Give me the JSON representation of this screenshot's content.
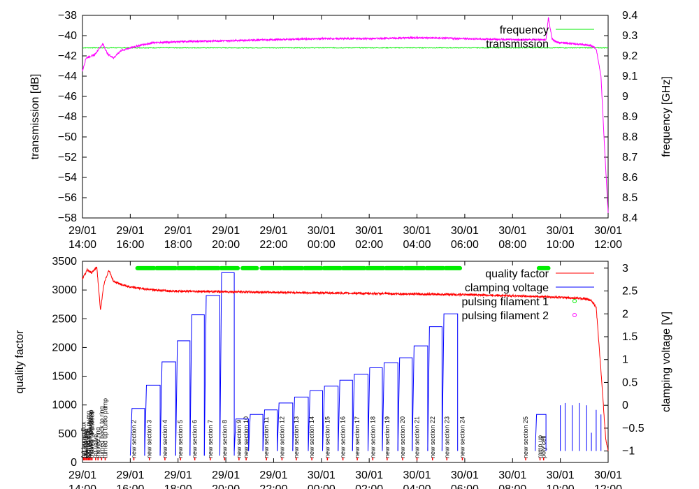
{
  "colors": {
    "frequency": "#00ee00",
    "transmission": "#ff00ff",
    "quality_factor": "#ff0000",
    "clamping_voltage": "#0000ff",
    "pulsing_filament_1": "#00ee00",
    "pulsing_filament_2": "#ff00ff"
  },
  "x_tick_labels": [
    {
      "date": "29/01",
      "time": "14:00"
    },
    {
      "date": "29/01",
      "time": "16:00"
    },
    {
      "date": "29/01",
      "time": "18:00"
    },
    {
      "date": "29/01",
      "time": "20:00"
    },
    {
      "date": "29/01",
      "time": "22:00"
    },
    {
      "date": "30/01",
      "time": "00:00"
    },
    {
      "date": "30/01",
      "time": "02:00"
    },
    {
      "date": "30/01",
      "time": "04:00"
    },
    {
      "date": "30/01",
      "time": "06:00"
    },
    {
      "date": "30/01",
      "time": "08:00"
    },
    {
      "date": "30/01",
      "time": "10:00"
    },
    {
      "date": "30/01",
      "time": "12:00"
    }
  ],
  "chart_data": [
    {
      "type": "line",
      "title": "",
      "x_unit": "hours since 29/01 14:00",
      "x_range": [
        0,
        22
      ],
      "ylabel": "transmission [dB]",
      "ylim": [
        -58,
        -38
      ],
      "y_ticks": [
        -58,
        -56,
        -54,
        -52,
        -50,
        -48,
        -46,
        -44,
        -42,
        -40,
        -38
      ],
      "y2label": "frequency [GHz]",
      "y2lim": [
        8.4,
        9.4
      ],
      "y2_ticks": [
        "8.4",
        "8.5",
        "8.6",
        "8.7",
        "8.8",
        "8.9",
        "9",
        "9.1",
        "9.2",
        "9.3",
        "9.4"
      ],
      "legend_position": "top-right",
      "series": [
        {
          "name": "frequency",
          "axis": "y2",
          "x": [
            0,
            0.5,
            1.0,
            2,
            4,
            6,
            8,
            10,
            12,
            14,
            16,
            18,
            19.5,
            20.5,
            21.5,
            21.8,
            22.0
          ],
          "y": [
            9.24,
            9.24,
            9.24,
            9.24,
            9.24,
            9.24,
            9.24,
            9.24,
            9.24,
            9.24,
            9.24,
            9.24,
            9.24,
            9.24,
            9.24,
            9.24,
            9.24
          ]
        },
        {
          "name": "transmission",
          "axis": "y",
          "x": [
            0,
            0.15,
            0.5,
            0.85,
            1.05,
            1.3,
            1.6,
            2.0,
            2.5,
            3,
            4,
            6,
            8,
            10,
            12,
            14,
            16,
            18,
            19.4,
            19.5,
            19.65,
            19.8,
            20,
            20.5,
            21,
            21.3,
            21.5,
            21.7,
            21.85,
            22.0
          ],
          "y": [
            -43.5,
            -42.2,
            -41.9,
            -40.8,
            -41.8,
            -42.2,
            -41.5,
            -41.2,
            -40.9,
            -40.7,
            -40.6,
            -40.5,
            -40.4,
            -40.3,
            -40.3,
            -40.2,
            -40.3,
            -40.4,
            -40.4,
            -38.2,
            -40.3,
            -40.6,
            -40.7,
            -40.8,
            -40.9,
            -41.0,
            -41.3,
            -44,
            -51,
            -57.5
          ]
        }
      ]
    },
    {
      "type": "line",
      "title": "",
      "x_unit": "hours since 29/01 14:00",
      "x_range": [
        0,
        22
      ],
      "ylabel": "quality factor",
      "ylim": [
        0,
        3500
      ],
      "y_ticks": [
        0,
        500,
        1000,
        1500,
        2000,
        2500,
        3000,
        3500
      ],
      "y2label": "clamping voltage [V]",
      "y2lim": [
        -1.25,
        3.15
      ],
      "y2_ticks": [
        "-1",
        "-0.5",
        "0",
        "0.5",
        "1",
        "1.5",
        "2",
        "2.5",
        "3"
      ],
      "legend_position": "top-right",
      "series": [
        {
          "name": "quality factor",
          "axis": "y",
          "x": [
            0,
            0.2,
            0.4,
            0.6,
            0.75,
            0.9,
            1.1,
            1.3,
            1.6,
            2.0,
            3,
            4,
            6,
            8,
            10,
            12,
            14,
            16,
            18,
            19.5,
            20,
            20.5,
            21,
            21.3,
            21.5,
            21.7,
            21.9,
            22.0
          ],
          "y": [
            3200,
            3350,
            3300,
            3400,
            2650,
            3100,
            3350,
            3150,
            3100,
            3050,
            3000,
            2980,
            2970,
            2960,
            2950,
            2940,
            2930,
            2920,
            2900,
            2880,
            2870,
            2860,
            2850,
            2820,
            2700,
            1600,
            400,
            200
          ]
        },
        {
          "name": "clamping voltage",
          "axis": "y2",
          "sections": [
            {
              "x0": 2.0,
              "x1": 2.6,
              "v0": -1.1,
              "v1": -0.07
            },
            {
              "x0": 2.6,
              "x1": 3.25,
              "v0": -1.1,
              "v1": 0.44
            },
            {
              "x0": 3.25,
              "x1": 3.9,
              "v0": -1.1,
              "v1": 0.95
            },
            {
              "x0": 3.9,
              "x1": 4.5,
              "v0": -1.1,
              "v1": 1.41
            },
            {
              "x0": 4.5,
              "x1": 5.1,
              "v0": -1.1,
              "v1": 1.98
            },
            {
              "x0": 5.1,
              "x1": 5.75,
              "v0": -1.1,
              "v1": 2.4
            },
            {
              "x0": 5.75,
              "x1": 6.35,
              "v0": -1.1,
              "v1": 2.9
            },
            {
              "x0": 6.35,
              "x1": 6.95,
              "v0": -1.0,
              "v1": -0.3
            },
            {
              "x0": 6.95,
              "x1": 7.55,
              "v0": -1.0,
              "v1": -0.2
            },
            {
              "x0": 7.55,
              "x1": 8.15,
              "v0": -1.0,
              "v1": -0.1
            },
            {
              "x0": 8.15,
              "x1": 8.8,
              "v0": -1.0,
              "v1": 0.05
            },
            {
              "x0": 8.8,
              "x1": 9.45,
              "v0": -1.0,
              "v1": 0.18
            },
            {
              "x0": 9.45,
              "x1": 10.05,
              "v0": -1.0,
              "v1": 0.32
            },
            {
              "x0": 10.05,
              "x1": 10.7,
              "v0": -1.0,
              "v1": 0.42
            },
            {
              "x0": 10.7,
              "x1": 11.3,
              "v0": -1.0,
              "v1": 0.55
            },
            {
              "x0": 11.3,
              "x1": 11.95,
              "v0": -1.0,
              "v1": 0.68
            },
            {
              "x0": 11.95,
              "x1": 12.55,
              "v0": -1.0,
              "v1": 0.82
            },
            {
              "x0": 12.55,
              "x1": 13.2,
              "v0": -1.0,
              "v1": 0.93
            },
            {
              "x0": 13.2,
              "x1": 13.8,
              "v0": -1.0,
              "v1": 1.04
            },
            {
              "x0": 13.8,
              "x1": 14.45,
              "v0": -1.0,
              "v1": 1.3
            },
            {
              "x0": 14.45,
              "x1": 15.05,
              "v0": -1.0,
              "v1": 1.72
            },
            {
              "x0": 15.05,
              "x1": 15.7,
              "v0": -1.0,
              "v1": 2.0
            },
            {
              "x0": 18.95,
              "x1": 19.4,
              "v0": -1.0,
              "v1": -0.2
            }
          ],
          "spikes": [
            {
              "x": 20.0,
              "v": 0.0
            },
            {
              "x": 20.2,
              "v": 0.05
            },
            {
              "x": 20.5,
              "v": 0.0
            },
            {
              "x": 20.8,
              "v": 0.05
            },
            {
              "x": 21.1,
              "v": 0.0
            },
            {
              "x": 21.3,
              "v": -0.6
            },
            {
              "x": 21.5,
              "v": -0.1
            },
            {
              "x": 21.7,
              "v": -0.2
            }
          ]
        },
        {
          "name": "pulsing filament 1",
          "axis": "y2",
          "marker": "circle",
          "bursts": [
            [
              2.3,
              3.0
            ],
            [
              3.1,
              3.9
            ],
            [
              4.0,
              4.7
            ],
            [
              4.8,
              5.7
            ],
            [
              5.8,
              6.5
            ],
            [
              6.7,
              7.3
            ],
            [
              7.5,
              8.3
            ],
            [
              8.4,
              9.2
            ],
            [
              9.3,
              10.0
            ],
            [
              10.1,
              10.8
            ],
            [
              10.9,
              11.8
            ],
            [
              11.9,
              12.6
            ],
            [
              12.7,
              13.4
            ],
            [
              13.5,
              14.3
            ],
            [
              14.4,
              15.1
            ],
            [
              15.2,
              15.8
            ],
            [
              19.1,
              19.5
            ]
          ],
          "level": 3.0
        },
        {
          "name": "pulsing filament 2",
          "axis": "y2",
          "marker": "circle",
          "bursts": [],
          "level": 3.0
        }
      ],
      "annotations": [
        {
          "x": 0.05,
          "label": "(o) bump flux"
        },
        {
          "x": 0.1,
          "label": "(o) startup"
        },
        {
          "x": 0.15,
          "label": "start pump"
        },
        {
          "x": 0.2,
          "label": "turned up"
        },
        {
          "x": 0.25,
          "label": "turned ring pump"
        },
        {
          "x": 0.3,
          "label": "ring cell gauge"
        },
        {
          "x": 0.35,
          "label": "moved ring pump"
        },
        {
          "x": 0.4,
          "label": "moved to chosen"
        },
        {
          "x": 0.55,
          "label": "(n) valve"
        },
        {
          "x": 0.65,
          "label": "moved ring"
        },
        {
          "x": 0.8,
          "label": "turned back to ring"
        },
        {
          "x": 0.95,
          "label": "turned up turbo pump"
        },
        {
          "x": 2.15,
          "label": "new section 2"
        },
        {
          "x": 2.8,
          "label": "new section 3"
        },
        {
          "x": 3.45,
          "label": "new section 4"
        },
        {
          "x": 4.1,
          "label": "new section 5"
        },
        {
          "x": 4.7,
          "label": "new section 6"
        },
        {
          "x": 5.35,
          "label": "new section 7"
        },
        {
          "x": 5.95,
          "label": "new section 8"
        },
        {
          "x": 6.55,
          "label": "new section 9"
        },
        {
          "x": 6.85,
          "label": "new section 10"
        },
        {
          "x": 7.7,
          "label": "new section 11"
        },
        {
          "x": 8.35,
          "label": "new section 12"
        },
        {
          "x": 8.95,
          "label": "new section 13"
        },
        {
          "x": 9.6,
          "label": "new section 14"
        },
        {
          "x": 10.25,
          "label": "new section 15"
        },
        {
          "x": 10.9,
          "label": "new section 16"
        },
        {
          "x": 11.5,
          "label": "new section 17"
        },
        {
          "x": 12.15,
          "label": "new section 18"
        },
        {
          "x": 12.75,
          "label": "new section 19"
        },
        {
          "x": 13.4,
          "label": "new section 20"
        },
        {
          "x": 14.0,
          "label": "new section 21"
        },
        {
          "x": 14.65,
          "label": "new section 22"
        },
        {
          "x": 15.25,
          "label": "new section 23"
        },
        {
          "x": 15.9,
          "label": "new section 24"
        },
        {
          "x": 18.55,
          "label": "new section 25"
        },
        {
          "x": 19.15,
          "label": "ramp up"
        },
        {
          "x": 19.3,
          "label": "poly cell"
        }
      ]
    }
  ]
}
